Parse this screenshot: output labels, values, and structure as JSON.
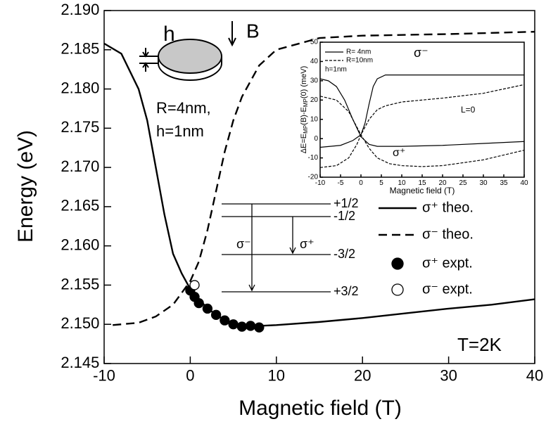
{
  "chart_data": [
    {
      "type": "line",
      "xlabel": "Magnetic field (T)",
      "ylabel": "Energy (eV)",
      "xlim": [
        -10,
        40
      ],
      "xticks": [
        -10,
        0,
        10,
        20,
        30,
        40
      ],
      "ylim": [
        2.145,
        2.19
      ],
      "yticks": [
        2.145,
        {
          "value": 2.15,
          "label": "2.150"
        },
        2.155,
        {
          "value": 2.16,
          "label": "2.160"
        },
        2.165,
        {
          "value": 2.17,
          "label": "2.170"
        },
        2.175,
        {
          "value": 2.18,
          "label": "2.180"
        },
        2.185,
        {
          "value": 2.19,
          "label": "2.190"
        }
      ],
      "series": [
        {
          "name": "σ⁺ theo.",
          "color": "#000000",
          "style": "solid",
          "x": [
            -10,
            -8,
            -6,
            -5,
            -4,
            -3,
            -2,
            -1,
            0,
            2,
            4,
            6,
            8,
            10,
            15,
            20,
            25,
            30,
            35,
            40
          ],
          "values": [
            2.1858,
            2.1845,
            2.18,
            2.176,
            2.17,
            2.164,
            2.159,
            2.1565,
            2.1545,
            2.152,
            2.1505,
            2.1499,
            2.1498,
            2.1499,
            2.1503,
            2.1508,
            2.1514,
            2.152,
            2.1525,
            2.1532
          ]
        },
        {
          "name": "σ⁻ theo.",
          "color": "#000000",
          "style": "dashed",
          "x": [
            -9,
            -6,
            -4,
            -2,
            -1,
            0,
            1,
            2,
            3,
            4,
            5,
            6,
            8,
            10,
            15,
            20,
            30,
            40
          ],
          "values": [
            2.1499,
            2.1502,
            2.151,
            2.1525,
            2.154,
            2.1555,
            2.158,
            2.162,
            2.167,
            2.172,
            2.176,
            2.179,
            2.183,
            2.185,
            2.1865,
            2.1868,
            2.187,
            2.1873
          ]
        },
        {
          "name": "σ⁺ expt.",
          "color": "#000000",
          "style": "filled",
          "x": [
            0,
            0.5,
            1,
            2,
            3,
            4,
            5,
            6,
            7,
            8
          ],
          "values": [
            2.1543,
            2.1535,
            2.1527,
            2.152,
            2.1512,
            2.1505,
            2.15,
            2.1497,
            2.1498,
            2.1496
          ]
        },
        {
          "name": "σ⁻ expt.",
          "color": "#000000",
          "style": "open",
          "x": [
            0.5
          ],
          "values": [
            2.155
          ]
        }
      ],
      "annotations": [
        "h",
        "B",
        "R=4nm,",
        "h=1nm",
        "T=2K"
      ],
      "levels": [
        "+1/2",
        "-1/2",
        "-3/2",
        "+3/2"
      ],
      "transitions": [
        "σ⁻",
        "σ⁺"
      ]
    },
    {
      "type": "line",
      "xlabel": "Magnetic field (T)",
      "ylabel": [
        "ΔE=E",
        "MP",
        "(B)-E",
        "MP",
        "(0) (meV)"
      ],
      "xlim": [
        -10,
        40
      ],
      "xticks": [
        -10,
        -5,
        0,
        5,
        10,
        15,
        20,
        25,
        30,
        35,
        40
      ],
      "ylim": [
        -20,
        50
      ],
      "yticks": [
        -20,
        -10,
        0,
        10,
        20,
        30,
        40,
        50
      ],
      "series": [
        {
          "name": "R= 4nm",
          "color": "#000000",
          "style": "solid",
          "branches": [
            {
              "x": [
                -10,
                -8,
                -6,
                -4,
                -2,
                0,
                2,
                4,
                10,
                20,
                30,
                40
              ],
              "values": [
                31,
                30,
                27,
                20,
                10,
                1,
                -3,
                -4,
                -4,
                -3.5,
                -2.5,
                -1.5
              ]
            },
            {
              "x": [
                -10,
                -5,
                -2,
                0,
                1,
                2,
                3,
                4,
                6,
                10,
                40
              ],
              "values": [
                -4.5,
                -3.5,
                -1,
                2,
                8,
                18,
                27,
                31,
                33,
                33,
                33
              ]
            }
          ]
        },
        {
          "name": "R=10nm",
          "color": "#000000",
          "style": "dashed",
          "branches": [
            {
              "x": [
                -10,
                -6,
                -3,
                -1,
                0,
                2,
                4,
                7,
                10,
                15,
                20,
                30,
                40
              ],
              "values": [
                22,
                20,
                14,
                6,
                2,
                -5,
                -10,
                -13,
                -14,
                -14.5,
                -14,
                -11,
                -6
              ]
            },
            {
              "x": [
                -10,
                -6,
                -3,
                -1,
                0,
                2,
                4,
                6,
                10,
                20,
                30,
                40
              ],
              "values": [
                -15,
                -14,
                -10,
                -3,
                2,
                10,
                15,
                17,
                19,
                21,
                23.5,
                28
              ]
            }
          ]
        }
      ],
      "annotations": [
        "h=1nm",
        "σ⁻",
        "L=0",
        "σ⁺"
      ]
    }
  ]
}
